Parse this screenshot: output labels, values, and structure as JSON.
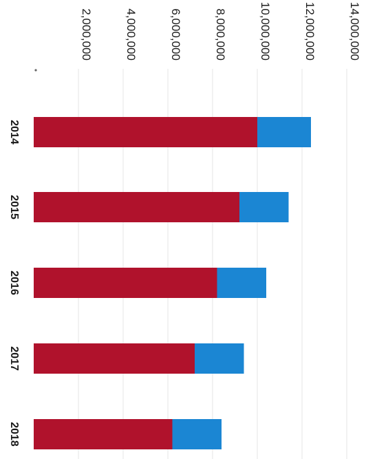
{
  "chart_data": {
    "type": "bar",
    "orientation": "horizontal",
    "stacked": true,
    "categories": [
      "2014",
      "2015",
      "2016",
      "2017",
      "2018"
    ],
    "series": [
      {
        "color": "#b0122c",
        "values": [
          10000000,
          9200000,
          8200000,
          7200000,
          6200000
        ]
      },
      {
        "color": "#1b86d3",
        "values": [
          2400000,
          2200000,
          2200000,
          2200000,
          2200000
        ]
      }
    ],
    "xlim": [
      0,
      14000000
    ],
    "x_ticks": [
      "2,000,000",
      "4,000,000",
      "6,000,000",
      "8,000,000",
      "10,000,000",
      "12,000,000",
      "14,000,000"
    ],
    "x_tick_values": [
      2000000,
      4000000,
      6000000,
      8000000,
      10000000,
      12000000,
      14000000
    ],
    "grid": true,
    "rotated": "90deg-clockwise"
  }
}
